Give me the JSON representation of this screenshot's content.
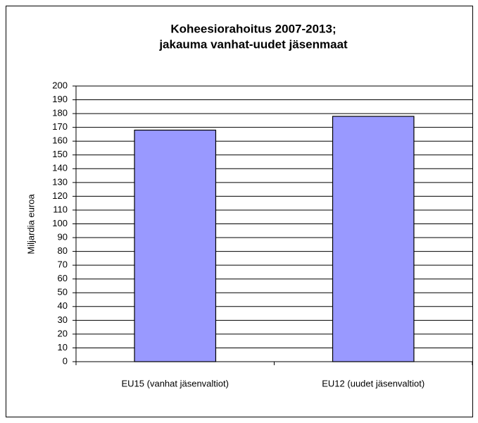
{
  "chart_data": {
    "type": "bar",
    "title": [
      "Koheesiorahoitus 2007-2013;",
      "jakauma vanhat-uudet jäsenmaat"
    ],
    "y_label": "Miljardia euroa",
    "categories": [
      "EU15 (vanhat jäsenvaltiot)",
      "EU12 (uudet jäsenvaltiot)"
    ],
    "values": [
      168,
      178
    ],
    "color": "#9999ff",
    "ylim": [
      0,
      200
    ],
    "yticks": [
      0,
      10,
      20,
      30,
      40,
      50,
      60,
      70,
      80,
      90,
      100,
      110,
      120,
      130,
      140,
      150,
      160,
      170,
      180,
      190,
      200
    ],
    "grid": true
  }
}
